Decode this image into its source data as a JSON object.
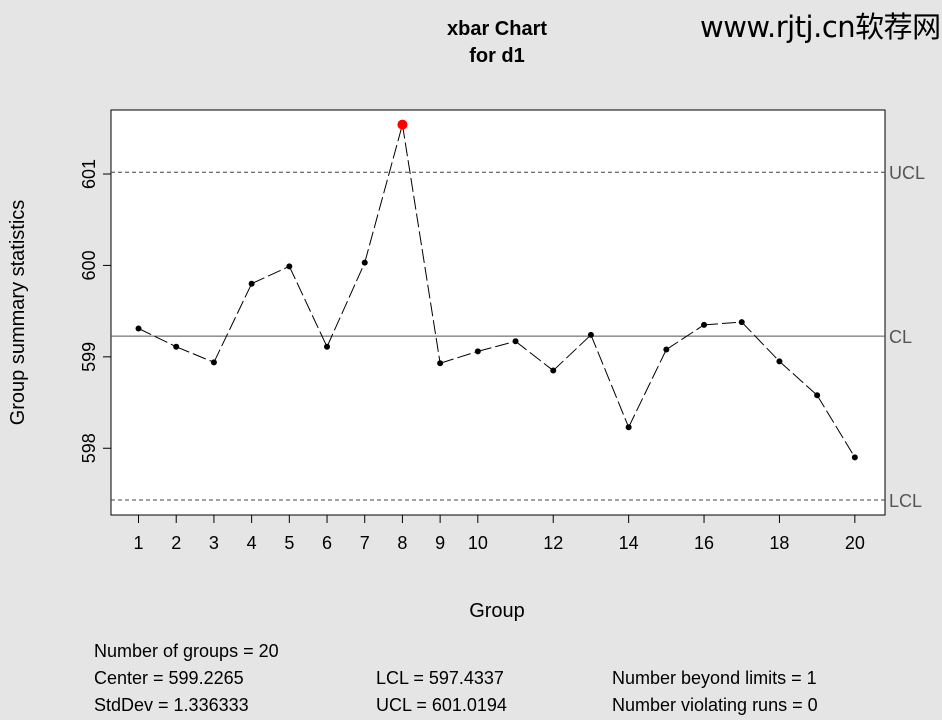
{
  "chart_data": {
    "type": "line",
    "title": "xbar Chart",
    "subtitle": "for d1",
    "xlabel": "Group",
    "ylabel": "Group summary statistics",
    "x": [
      1,
      2,
      3,
      4,
      5,
      6,
      7,
      8,
      9,
      10,
      11,
      12,
      13,
      14,
      15,
      16,
      17,
      18,
      19,
      20
    ],
    "values": [
      599.31,
      599.11,
      598.94,
      599.8,
      599.99,
      599.11,
      600.03,
      601.54,
      598.93,
      599.06,
      599.17,
      598.85,
      599.24,
      598.23,
      599.08,
      599.35,
      599.38,
      598.95,
      598.58,
      597.9
    ],
    "beyond_limits": [
      8
    ],
    "xlim": [
      0.27,
      20.8
    ],
    "ylim": [
      597.27,
      601.7
    ],
    "xticks": [
      1,
      2,
      3,
      4,
      5,
      6,
      7,
      8,
      9,
      10,
      12,
      14,
      16,
      18,
      20
    ],
    "yticks": [
      598,
      599,
      600,
      601
    ],
    "limits": [
      {
        "label": "UCL",
        "value": 601.0194,
        "style": "dashed"
      },
      {
        "label": "CL",
        "value": 599.2265,
        "style": "solid"
      },
      {
        "label": "LCL",
        "value": 597.4337,
        "style": "dashed"
      }
    ],
    "colors": {
      "point": "#000000",
      "violation": "#ff0000",
      "background": "#e5e5e5",
      "plot": "#ffffff"
    }
  },
  "stats": {
    "groups": "Number of groups = 20",
    "center": "Center = 599.2265",
    "stddev": "StdDev = 1.336333",
    "lcl": "LCL = 597.4337",
    "ucl": "UCL = 601.0194",
    "beyond": "Number beyond limits = 1",
    "runs": "Number violating runs = 0"
  },
  "watermark": "www.rjtj.cn软荐网"
}
